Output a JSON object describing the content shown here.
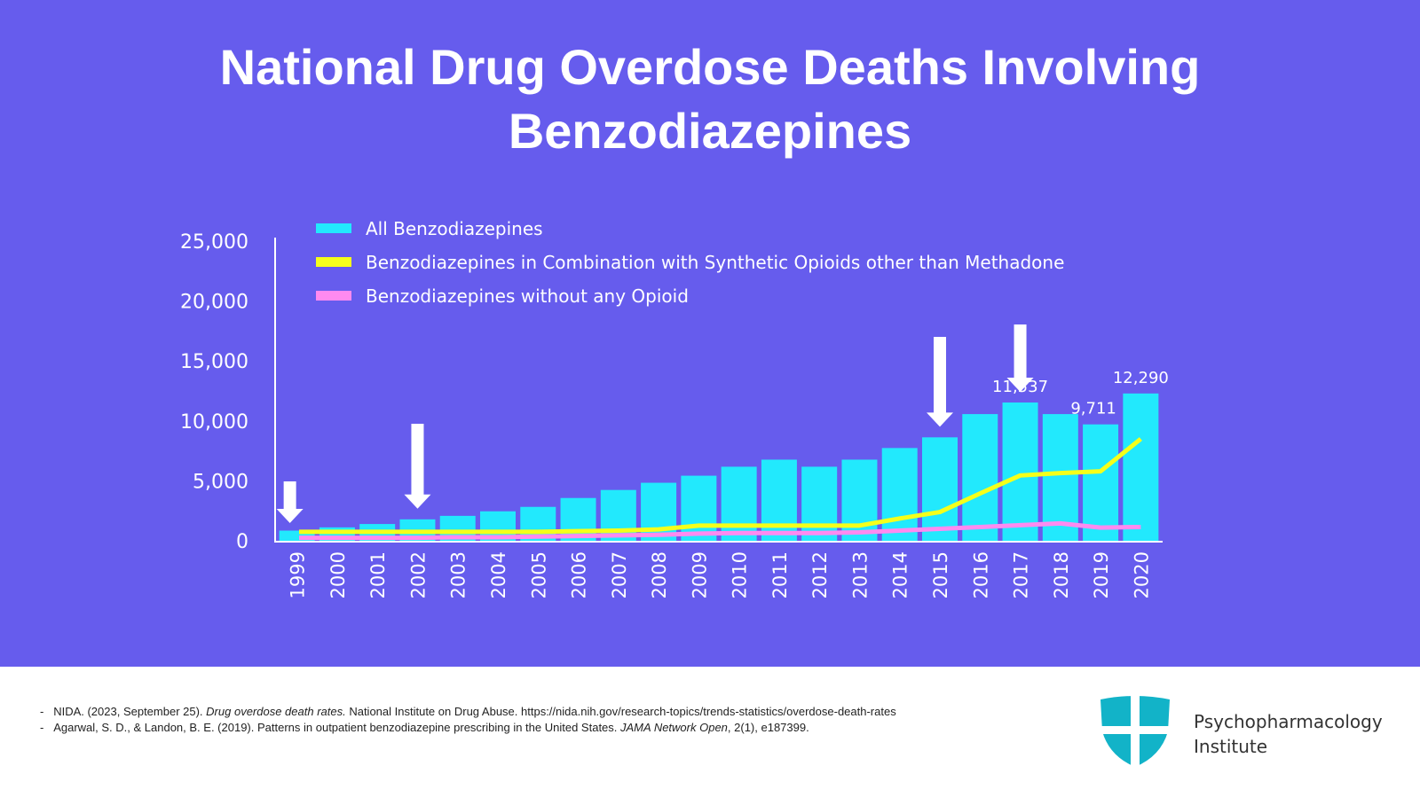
{
  "title_line1": "National Drug Overdose Deaths Involving",
  "title_line2": "Benzodiazepines",
  "chart_data": {
    "type": "bar+line",
    "categories": [
      "1999",
      "2000",
      "2001",
      "2002",
      "2003",
      "2004",
      "2005",
      "2006",
      "2007",
      "2008",
      "2009",
      "2010",
      "2011",
      "2012",
      "2013",
      "2014",
      "2015",
      "2016",
      "2017",
      "2018",
      "2019",
      "2020"
    ],
    "ylim": [
      0,
      25000
    ],
    "yticks": [
      "0",
      "5,000",
      "10,000",
      "15,000",
      "20,000",
      "25,000"
    ],
    "grid": false,
    "legend_position": "top",
    "series": [
      {
        "name": "All Benzodiazepines",
        "type": "bar",
        "color": "#22e9fd",
        "values": [
          850,
          1120,
          1400,
          1790,
          2080,
          2460,
          2830,
          3570,
          4240,
          4840,
          5430,
          6180,
          6770,
          6180,
          6770,
          7740,
          8630,
          10570,
          11537,
          10570,
          9711,
          12290
        ]
      },
      {
        "name": "Benzodiazepines in Combination with Synthetic Opioids other than Methadone",
        "type": "line",
        "color": "#f5ff1a",
        "values": [
          750,
          750,
          750,
          750,
          750,
          750,
          750,
          800,
          850,
          950,
          1270,
          1270,
          1270,
          1270,
          1270,
          1860,
          2400,
          3950,
          5450,
          5650,
          5800,
          8500
        ]
      },
      {
        "name": "Benzodiazepines without any Opioid",
        "type": "line",
        "color": "#ff8af0",
        "values": [
          250,
          250,
          250,
          250,
          300,
          300,
          350,
          400,
          450,
          500,
          600,
          650,
          650,
          650,
          700,
          850,
          1000,
          1150,
          1300,
          1450,
          1100,
          1150
        ]
      }
    ],
    "data_labels": [
      {
        "category": "2017",
        "text": "11,537"
      },
      {
        "category": "2019",
        "text": "9,711"
      },
      {
        "category": "2020",
        "text": "12,290"
      }
    ],
    "annotations": [
      {
        "type": "down-arrow",
        "category": "1999"
      },
      {
        "type": "down-arrow",
        "category": "2002"
      },
      {
        "type": "down-arrow",
        "category": "2015"
      },
      {
        "type": "down-arrow",
        "category": "2017"
      }
    ]
  },
  "references": [
    {
      "dash": "-",
      "pre": "NIDA. (2023, September 25). ",
      "italic": "Drug overdose death rates.",
      "post": " National Institute on Drug Abuse. https://nida.nih.gov/research-topics/trends-statistics/overdose-death-rates"
    },
    {
      "dash": "-",
      "pre": "Agarwal, S. D., & Landon, B. E. (2019). Patterns in outpatient benzodiazepine prescribing in the United States. ",
      "italic": "JAMA Network Open",
      "post": ", 2(1), e187399."
    }
  ],
  "brand": {
    "line1": "Psychopharmacology",
    "line2": "Institute"
  }
}
